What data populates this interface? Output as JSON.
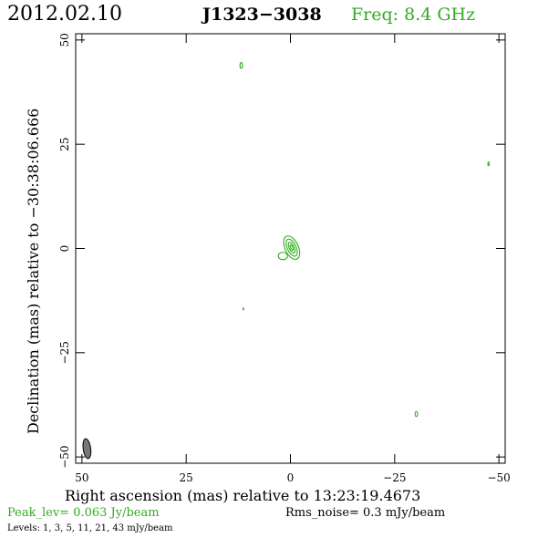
{
  "header": {
    "date": "2012.02.10",
    "source": "J1323−3038",
    "freq": "Freq:  8.4  GHz"
  },
  "chart_data": {
    "type": "contour",
    "x_label": "Right ascension (mas) relative to 13:23:19.4673",
    "y_label": "Declination (mas) relative to −30:38:06.666",
    "xlim": [
      51.5,
      -51.5
    ],
    "ylim": [
      -51.5,
      51.5
    ],
    "x_ticks": [
      50,
      25,
      0,
      -25,
      -50
    ],
    "x_tick_labels": [
      "50",
      "25",
      "0",
      "−25",
      "−50"
    ],
    "y_ticks": [
      50,
      25,
      0,
      -25,
      -50
    ],
    "y_tick_labels": [
      "50",
      "25",
      "0",
      "−25",
      "−50"
    ],
    "contours": [
      {
        "x": -0.3,
        "y": 0.2,
        "rx": 1.6,
        "ry": 3.0,
        "angle": -25
      },
      {
        "x": -0.3,
        "y": 0.2,
        "rx": 1.05,
        "ry": 2.2,
        "angle": -25
      },
      {
        "x": -0.3,
        "y": 0.2,
        "rx": 0.6,
        "ry": 1.4,
        "angle": -25
      },
      {
        "x": -0.3,
        "y": 0.2,
        "rx": 0.25,
        "ry": 0.7,
        "angle": -25
      },
      {
        "x": 1.8,
        "y": -1.8,
        "rx": 1.1,
        "ry": 0.9,
        "angle": 0
      },
      {
        "x": 11.8,
        "y": 43.9,
        "rx": 0.3,
        "ry": 0.7,
        "angle": 0
      },
      {
        "x": -47.5,
        "y": 20.3,
        "rx": 0.15,
        "ry": 0.45,
        "angle": 0
      },
      {
        "x": -30.2,
        "y": -39.7,
        "rx": 0.3,
        "ry": 0.6,
        "angle": 0
      },
      {
        "x": 11.3,
        "y": -14.5,
        "rx": 0.08,
        "ry": 0.25,
        "angle": 0
      }
    ],
    "beam": {
      "x": 48.8,
      "y": -48.0,
      "rx": 0.9,
      "ry": 2.4,
      "angle": -8
    },
    "colors": {
      "contour": "#33aa22",
      "beam": "#777777",
      "axis": "#000000"
    }
  },
  "footer": {
    "peak": "Peak_lev=  0.063 Jy/beam",
    "rms": "Rms_noise=   0.3 mJy/beam",
    "levels": "Levels:    1,    3,    5,   11,   21,   43  mJy/beam"
  }
}
